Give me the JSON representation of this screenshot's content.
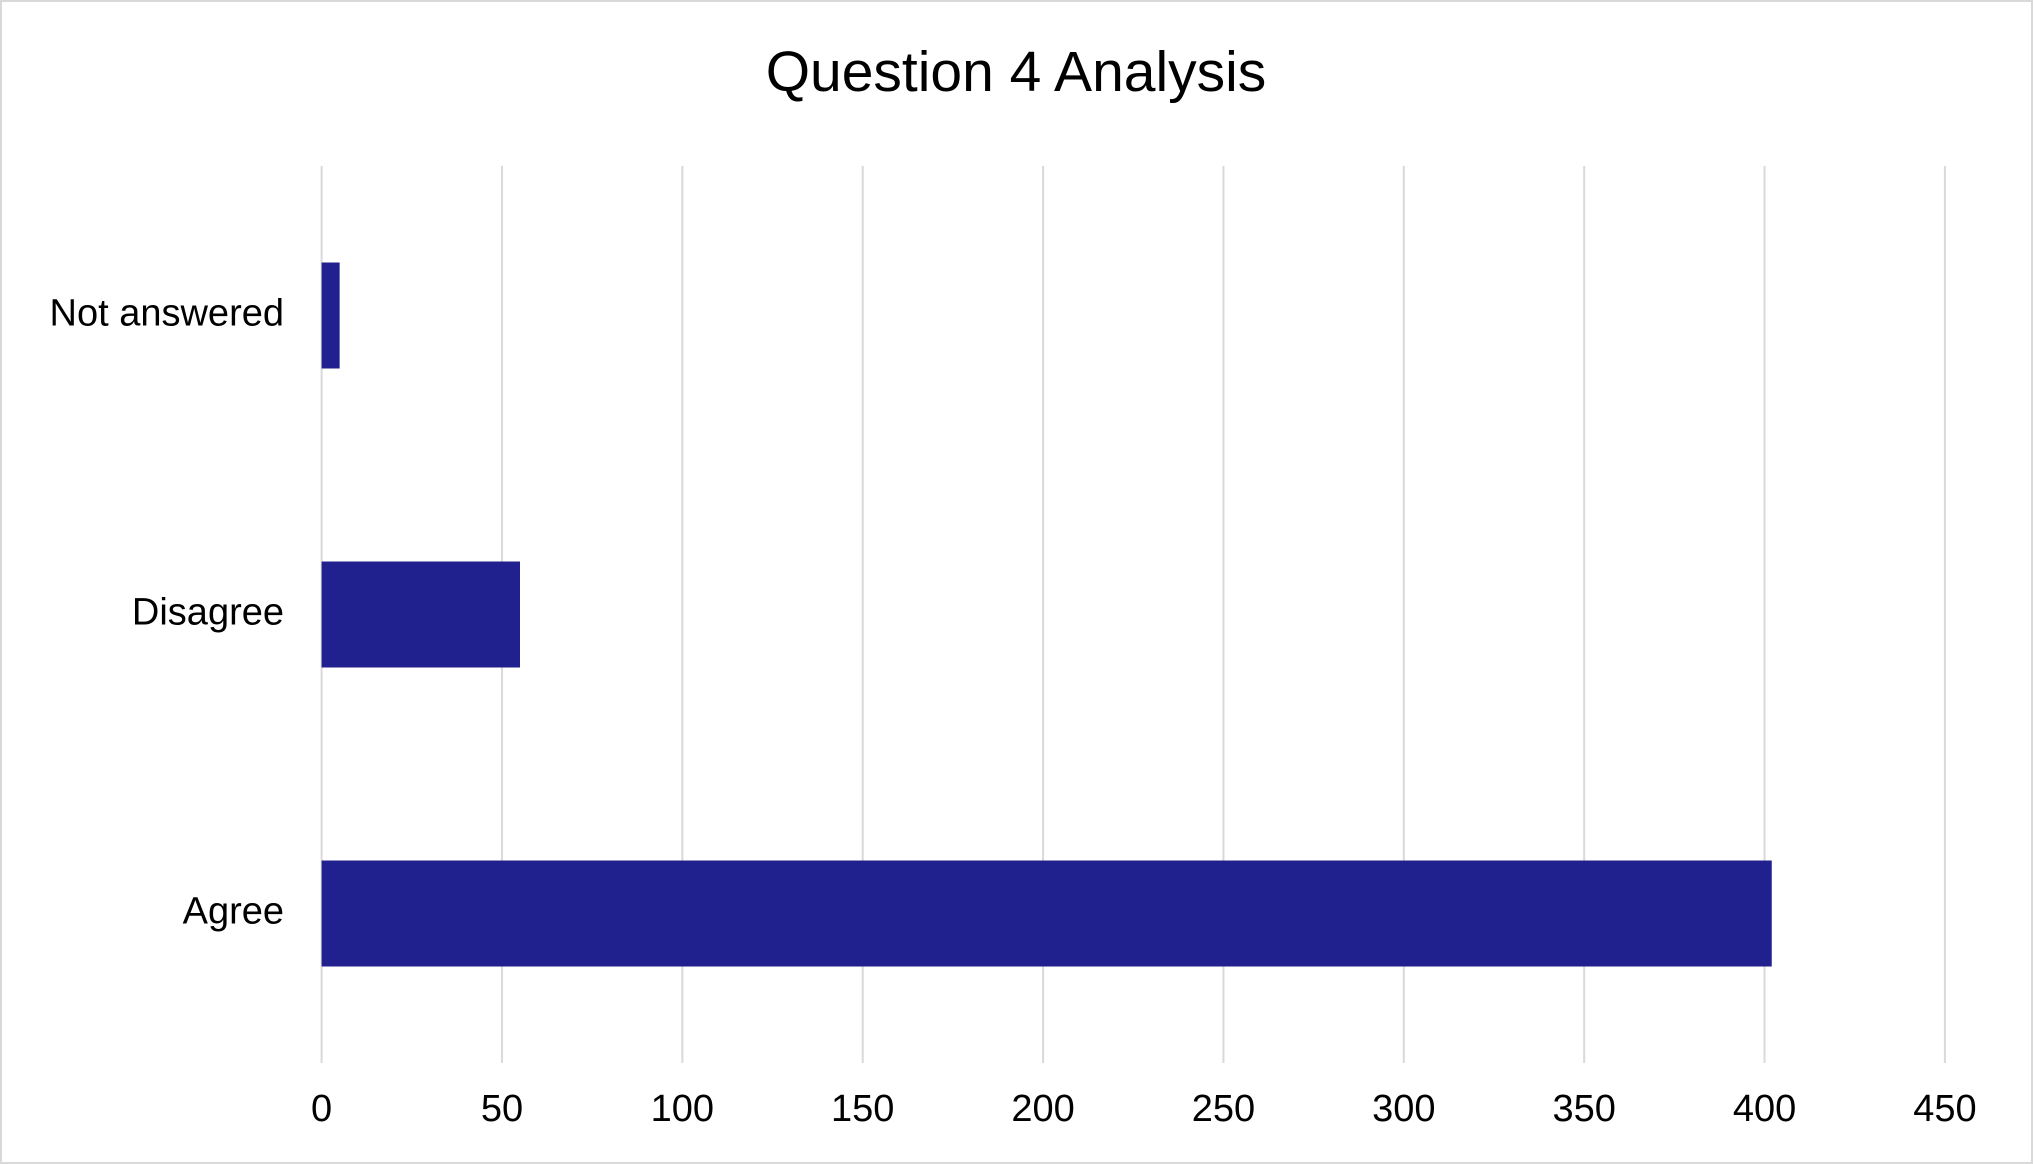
{
  "chart_data": {
    "type": "hbar",
    "title": "Question 4 Analysis",
    "categories": [
      "Not answered",
      "Disagree",
      "Agree"
    ],
    "values": [
      5,
      55,
      402
    ],
    "color": "#20208f",
    "xlim": [
      0,
      450
    ],
    "xticks": [
      0,
      50,
      100,
      150,
      200,
      250,
      300,
      350,
      400,
      450
    ],
    "grid": true
  }
}
